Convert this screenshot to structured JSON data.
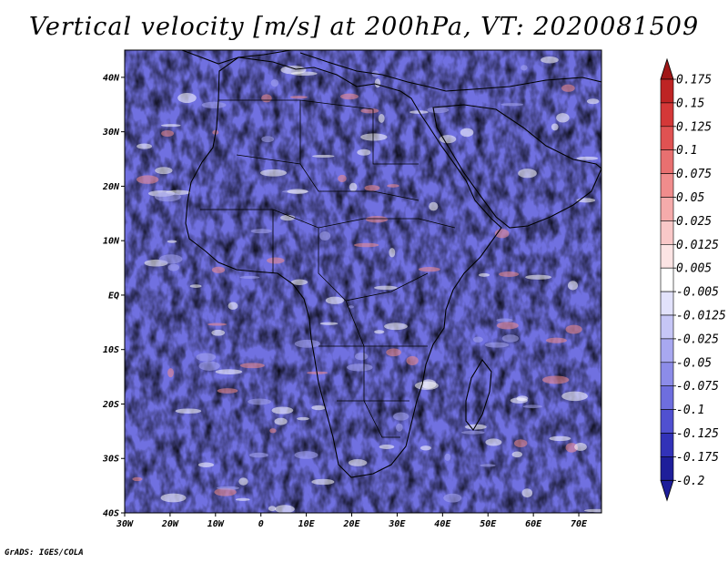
{
  "title": "Vertical velocity [m/s] at 200hPa, VT: 2020081509",
  "footer": "GrADS: IGES/COLA",
  "map": {
    "lon_range": [
      -30,
      75
    ],
    "lat_range": [
      -40,
      45
    ],
    "lat_ticks": [
      {
        "value": 40,
        "label": "40N"
      },
      {
        "value": 30,
        "label": "30N"
      },
      {
        "value": 20,
        "label": "20N"
      },
      {
        "value": 10,
        "label": "10N"
      },
      {
        "value": 0,
        "label": "EQ"
      },
      {
        "value": -10,
        "label": "10S"
      },
      {
        "value": -20,
        "label": "20S"
      },
      {
        "value": -30,
        "label": "30S"
      },
      {
        "value": -40,
        "label": "40S"
      }
    ],
    "lon_ticks": [
      {
        "value": -30,
        "label": "30W"
      },
      {
        "value": -20,
        "label": "20W"
      },
      {
        "value": -10,
        "label": "10W"
      },
      {
        "value": 0,
        "label": "0"
      },
      {
        "value": 10,
        "label": "10E"
      },
      {
        "value": 20,
        "label": "20E"
      },
      {
        "value": 30,
        "label": "30E"
      },
      {
        "value": 40,
        "label": "40E"
      },
      {
        "value": 50,
        "label": "50E"
      },
      {
        "value": 60,
        "label": "60E"
      },
      {
        "value": 70,
        "label": "70E"
      }
    ]
  },
  "colorbar": {
    "min": -0.2,
    "max": 0.175,
    "levels": [
      {
        "label": "0.175",
        "color": "#a01818"
      },
      {
        "label": "0.15",
        "color": "#be2424"
      },
      {
        "label": "0.125",
        "color": "#d43838"
      },
      {
        "label": "0.1",
        "color": "#e05252"
      },
      {
        "label": "0.075",
        "color": "#e87070"
      },
      {
        "label": "0.05",
        "color": "#f08c8c"
      },
      {
        "label": "0.025",
        "color": "#f5abab"
      },
      {
        "label": "0.0125",
        "color": "#f9c8c8"
      },
      {
        "label": "0.005",
        "color": "#fce4e4"
      },
      {
        "label": "-0.005",
        "color": "#ffffff"
      },
      {
        "label": "-0.0125",
        "color": "#e2e2fb"
      },
      {
        "label": "-0.025",
        "color": "#c6c6f6"
      },
      {
        "label": "-0.05",
        "color": "#a8a8f0"
      },
      {
        "label": "-0.075",
        "color": "#8c8ce8"
      },
      {
        "label": "-0.1",
        "color": "#6e6ede"
      },
      {
        "label": "-0.125",
        "color": "#5050d0"
      },
      {
        "label": "-0.175",
        "color": "#3232b8"
      },
      {
        "label": "-0.2",
        "color": "#1e1e9a"
      }
    ]
  },
  "colors": {
    "red": "#e8746e",
    "blue": "#7070e0",
    "coast": "#000000"
  }
}
